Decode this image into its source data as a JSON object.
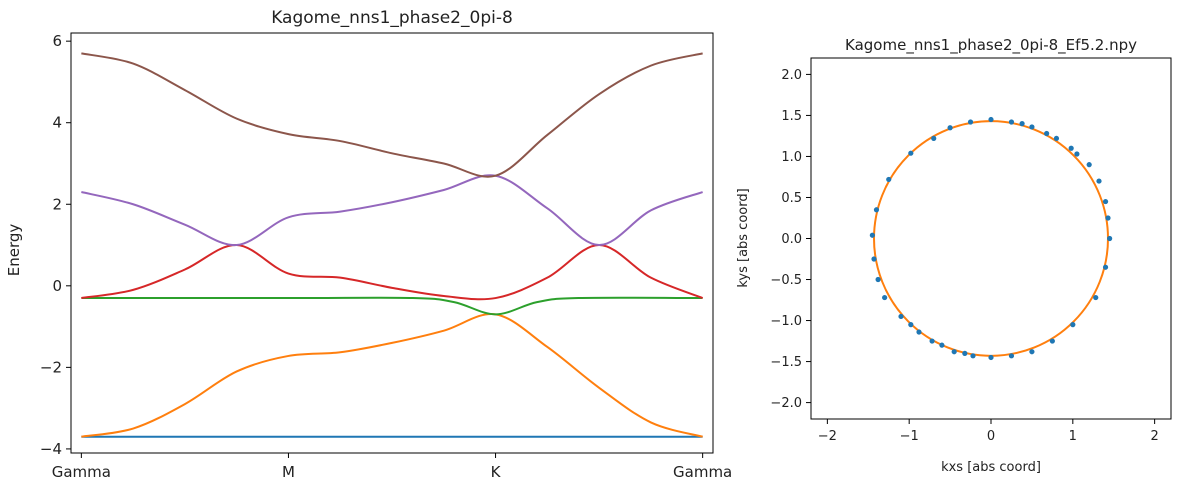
{
  "chart_data": [
    {
      "type": "line",
      "title": "Kagome_nns1_phase2_0pi-8",
      "xlabel": "",
      "ylabel": "Energy",
      "ylim": [
        -4.1,
        6.2
      ],
      "xlim": [
        -0.05,
        3.05
      ],
      "x_ticks": [
        {
          "x": 0,
          "label": "Gamma"
        },
        {
          "x": 1,
          "label": "M"
        },
        {
          "x": 2,
          "label": "K"
        },
        {
          "x": 3,
          "label": "Gamma"
        }
      ],
      "y_ticks": [
        -4,
        -2,
        0,
        2,
        4,
        6
      ],
      "grid": false,
      "series": [
        {
          "color": "#1f77b4",
          "points": [
            [
              0,
              -3.7
            ],
            [
              3,
              -3.7
            ]
          ]
        },
        {
          "color": "#ff7f0e",
          "points": [
            [
              0,
              -3.7
            ],
            [
              0.25,
              -3.5
            ],
            [
              0.5,
              -2.9
            ],
            [
              0.75,
              -2.1
            ],
            [
              1,
              -1.72
            ],
            [
              1.25,
              -1.63
            ],
            [
              1.5,
              -1.4
            ],
            [
              1.75,
              -1.1
            ],
            [
              2,
              -0.7
            ],
            [
              2.25,
              -1.5
            ],
            [
              2.5,
              -2.5
            ],
            [
              2.75,
              -3.35
            ],
            [
              3,
              -3.7
            ]
          ]
        },
        {
          "color": "#2ca02c",
          "points": [
            [
              0,
              -0.3
            ],
            [
              1,
              -0.3
            ],
            [
              1.6,
              -0.3
            ],
            [
              1.8,
              -0.4
            ],
            [
              2,
              -0.7
            ],
            [
              2.2,
              -0.4
            ],
            [
              2.4,
              -0.3
            ],
            [
              3,
              -0.3
            ]
          ]
        },
        {
          "color": "#d62728",
          "points": [
            [
              0,
              -0.3
            ],
            [
              0.25,
              -0.1
            ],
            [
              0.5,
              0.4
            ],
            [
              0.75,
              1.0
            ],
            [
              1,
              0.3
            ],
            [
              1.25,
              0.2
            ],
            [
              1.5,
              -0.05
            ],
            [
              1.75,
              -0.25
            ],
            [
              2,
              -0.3
            ],
            [
              2.25,
              0.2
            ],
            [
              2.5,
              1.0
            ],
            [
              2.75,
              0.2
            ],
            [
              3,
              -0.3
            ]
          ]
        },
        {
          "color": "#9467bd",
          "points": [
            [
              0,
              2.3
            ],
            [
              0.25,
              2.0
            ],
            [
              0.5,
              1.5
            ],
            [
              0.75,
              1.0
            ],
            [
              1,
              1.68
            ],
            [
              1.25,
              1.82
            ],
            [
              1.5,
              2.05
            ],
            [
              1.75,
              2.35
            ],
            [
              2,
              2.7
            ],
            [
              2.25,
              1.9
            ],
            [
              2.5,
              1.0
            ],
            [
              2.75,
              1.85
            ],
            [
              3,
              2.3
            ]
          ]
        },
        {
          "color": "#8c564b",
          "points": [
            [
              0,
              5.7
            ],
            [
              0.25,
              5.45
            ],
            [
              0.5,
              4.8
            ],
            [
              0.75,
              4.1
            ],
            [
              1,
              3.72
            ],
            [
              1.25,
              3.55
            ],
            [
              1.5,
              3.25
            ],
            [
              1.75,
              3.0
            ],
            [
              2,
              2.7
            ],
            [
              2.25,
              3.7
            ],
            [
              2.5,
              4.7
            ],
            [
              2.75,
              5.4
            ],
            [
              3,
              5.7
            ]
          ]
        }
      ]
    },
    {
      "type": "scatter",
      "title": "Kagome_nns1_phase2_0pi-8_Ef5.2.npy",
      "xlabel": "kxs [abs coord]",
      "ylabel": "kys [abs coord]",
      "xlim": [
        -2.2,
        2.2
      ],
      "ylim": [
        -2.2,
        2.2
      ],
      "x_ticks": [
        -2,
        -1,
        0,
        1,
        2
      ],
      "y_ticks": [
        -2.0,
        -1.5,
        -1.0,
        -0.5,
        0.0,
        0.5,
        1.0,
        1.5,
        2.0
      ],
      "grid": false,
      "fit_circle": {
        "color": "#ff7f0e",
        "radius": 1.43
      },
      "points_color": "#1f77b4",
      "points": [
        [
          1.45,
          0.0
        ],
        [
          1.43,
          0.25
        ],
        [
          1.4,
          0.45
        ],
        [
          1.32,
          0.7
        ],
        [
          1.2,
          0.9
        ],
        [
          1.05,
          1.03
        ],
        [
          0.98,
          1.1
        ],
        [
          0.8,
          1.22
        ],
        [
          0.68,
          1.28
        ],
        [
          0.5,
          1.36
        ],
        [
          0.38,
          1.4
        ],
        [
          0.25,
          1.42
        ],
        [
          0.0,
          1.45
        ],
        [
          -0.25,
          1.42
        ],
        [
          -0.5,
          1.35
        ],
        [
          -0.7,
          1.22
        ],
        [
          -0.98,
          1.04
        ],
        [
          -1.25,
          0.72
        ],
        [
          -1.4,
          0.35
        ],
        [
          -1.45,
          0.04
        ],
        [
          -1.43,
          -0.25
        ],
        [
          -1.38,
          -0.5
        ],
        [
          -1.3,
          -0.72
        ],
        [
          -1.1,
          -0.95
        ],
        [
          -0.98,
          -1.05
        ],
        [
          -0.88,
          -1.14
        ],
        [
          -0.72,
          -1.25
        ],
        [
          -0.6,
          -1.3
        ],
        [
          -0.45,
          -1.38
        ],
        [
          -0.32,
          -1.4
        ],
        [
          -0.22,
          -1.43
        ],
        [
          0.0,
          -1.45
        ],
        [
          0.25,
          -1.43
        ],
        [
          0.5,
          -1.38
        ],
        [
          0.75,
          -1.25
        ],
        [
          1.0,
          -1.05
        ],
        [
          1.28,
          -0.72
        ],
        [
          1.4,
          -0.35
        ]
      ]
    }
  ]
}
